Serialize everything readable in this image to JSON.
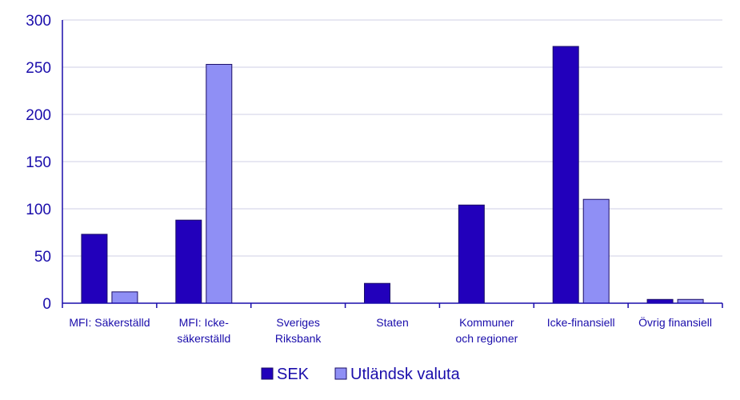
{
  "chart_data": {
    "type": "bar",
    "title": "",
    "xlabel": "",
    "ylabel": "",
    "ylim": [
      0,
      300
    ],
    "yticks": [
      "0",
      "50",
      "100",
      "150",
      "200",
      "250",
      "300"
    ],
    "grid": true,
    "legend_position": "bottom-center",
    "categories": [
      [
        "MFI: Säkerställd"
      ],
      [
        "MFI: Icke-",
        "säkerställd"
      ],
      [
        "Sveriges",
        "Riksbank"
      ],
      [
        "Staten"
      ],
      [
        "Kommuner",
        "och regioner"
      ],
      [
        "Icke-finansiell"
      ],
      [
        "Övrig finansiell"
      ]
    ],
    "series": [
      {
        "name": "SEK",
        "color": "#2200bb",
        "values": [
          73,
          88,
          0,
          21,
          104,
          272,
          4
        ]
      },
      {
        "name": "Utländsk valuta",
        "color": "#8f8ff5",
        "values": [
          12,
          253,
          0,
          0,
          0,
          110,
          4
        ]
      }
    ]
  }
}
